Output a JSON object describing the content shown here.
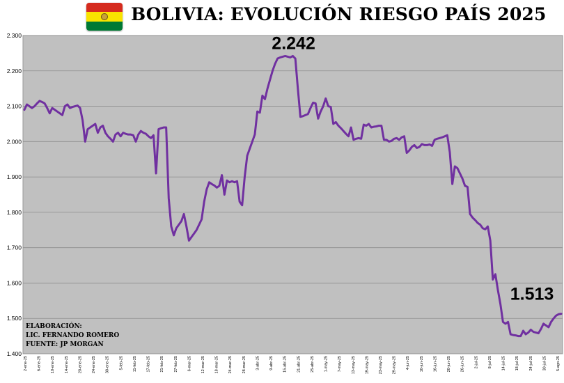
{
  "header": {
    "title": "BOLIVIA: EVOLUCIÓN RIESGO PAÍS 2025",
    "flag": {
      "name": "bolivia-flag",
      "colors": [
        "#d52b1e",
        "#f9e300",
        "#007934"
      ]
    }
  },
  "credits": {
    "line1": "ELABORACIÓN:",
    "line2": "LIC. FERNANDO ROMERO",
    "line3": "FUENTE: JP MORGAN"
  },
  "chart_data": {
    "type": "line",
    "title": "BOLIVIA: EVOLUCIÓN RIESGO PAÍS 2025",
    "xlabel": "",
    "ylabel": "",
    "ylim": [
      1400,
      2300
    ],
    "yticks": [
      "1.400",
      "1.500",
      "1.600",
      "1.700",
      "1.800",
      "1.900",
      "2.000",
      "2.100",
      "2.200",
      "2.300"
    ],
    "grid": "horizontal",
    "legend": "none",
    "plot_background": "#c0c0c0",
    "line_color": "#7030a0",
    "annotations": [
      {
        "text": "2.242",
        "at": "maximum"
      },
      {
        "text": "1.513",
        "at": "last"
      }
    ],
    "x_tick_labels": [
      "2-ene-25",
      "6-ene-25",
      "10-ene-25",
      "14-ene-25",
      "20-ene-25",
      "24-ene-25",
      "30-ene-25",
      "5-feb-25",
      "11-feb-25",
      "17-feb-25",
      "21-feb-25",
      "27-feb-25",
      "6-mar-25",
      "12-mar-25",
      "18-mar-25",
      "24-mar-25",
      "28-mar-25",
      "3-abr-25",
      "9-abr-25",
      "15-abr-25",
      "21-abr-25",
      "25-abr-25",
      "1-may-25",
      "7-may-25",
      "13-may-25",
      "19-may-25",
      "23-may-25",
      "29-may-25",
      "4-jun-25",
      "10-jun-25",
      "16-jun-25",
      "20-jun-25",
      "26-jun-25",
      "2-jul-25",
      "8-jul-25",
      "14-jul-25",
      "18-jul-25",
      "24-jul-25",
      "30-jul-25",
      "5-ago-25"
    ],
    "values": [
      2090,
      2105,
      2100,
      2095,
      2100,
      2108,
      2115,
      2112,
      2108,
      2095,
      2080,
      2095,
      2090,
      2085,
      2080,
      2075,
      2100,
      2105,
      2095,
      2098,
      2100,
      2102,
      2095,
      2060,
      2000,
      2035,
      2040,
      2045,
      2050,
      2025,
      2040,
      2045,
      2025,
      2015,
      2008,
      2000,
      2020,
      2025,
      2015,
      2025,
      2022,
      2020,
      2020,
      2018,
      2000,
      2020,
      2030,
      2025,
      2022,
      2015,
      2010,
      2018,
      1910,
      2035,
      2038,
      2040,
      2040,
      1840,
      1760,
      1735,
      1755,
      1765,
      1775,
      1795,
      1760,
      1720,
      1730,
      1740,
      1750,
      1765,
      1780,
      1830,
      1865,
      1885,
      1880,
      1876,
      1870,
      1875,
      1905,
      1850,
      1890,
      1885,
      1888,
      1885,
      1888,
      1830,
      1820,
      1900,
      1960,
      1980,
      2000,
      2020,
      2085,
      2082,
      2130,
      2120,
      2150,
      2175,
      2200,
      2220,
      2235,
      2238,
      2240,
      2242,
      2240,
      2238,
      2242,
      2235,
      2150,
      2070,
      2072,
      2075,
      2078,
      2095,
      2110,
      2108,
      2065,
      2085,
      2100,
      2122,
      2100,
      2098,
      2050,
      2055,
      2045,
      2038,
      2030,
      2022,
      2015,
      2040,
      2005,
      2008,
      2010,
      2008,
      2048,
      2045,
      2050,
      2040,
      2042,
      2043,
      2045,
      2045,
      2005,
      2005,
      2000,
      2002,
      2008,
      2010,
      2005,
      2012,
      2015,
      1968,
      1975,
      1985,
      1990,
      1982,
      1985,
      1993,
      1990,
      1990,
      1992,
      1988,
      2005,
      2008,
      2010,
      2012,
      2015,
      2018,
      1970,
      1880,
      1930,
      1925,
      1910,
      1895,
      1875,
      1872,
      1795,
      1785,
      1778,
      1770,
      1765,
      1755,
      1752,
      1760,
      1720,
      1610,
      1625,
      1580,
      1540,
      1490,
      1485,
      1490,
      1455,
      1453,
      1452,
      1450,
      1450,
      1465,
      1455,
      1460,
      1468,
      1462,
      1460,
      1458,
      1470,
      1485,
      1480,
      1475,
      1490,
      1500,
      1508,
      1512,
      1513
    ]
  }
}
